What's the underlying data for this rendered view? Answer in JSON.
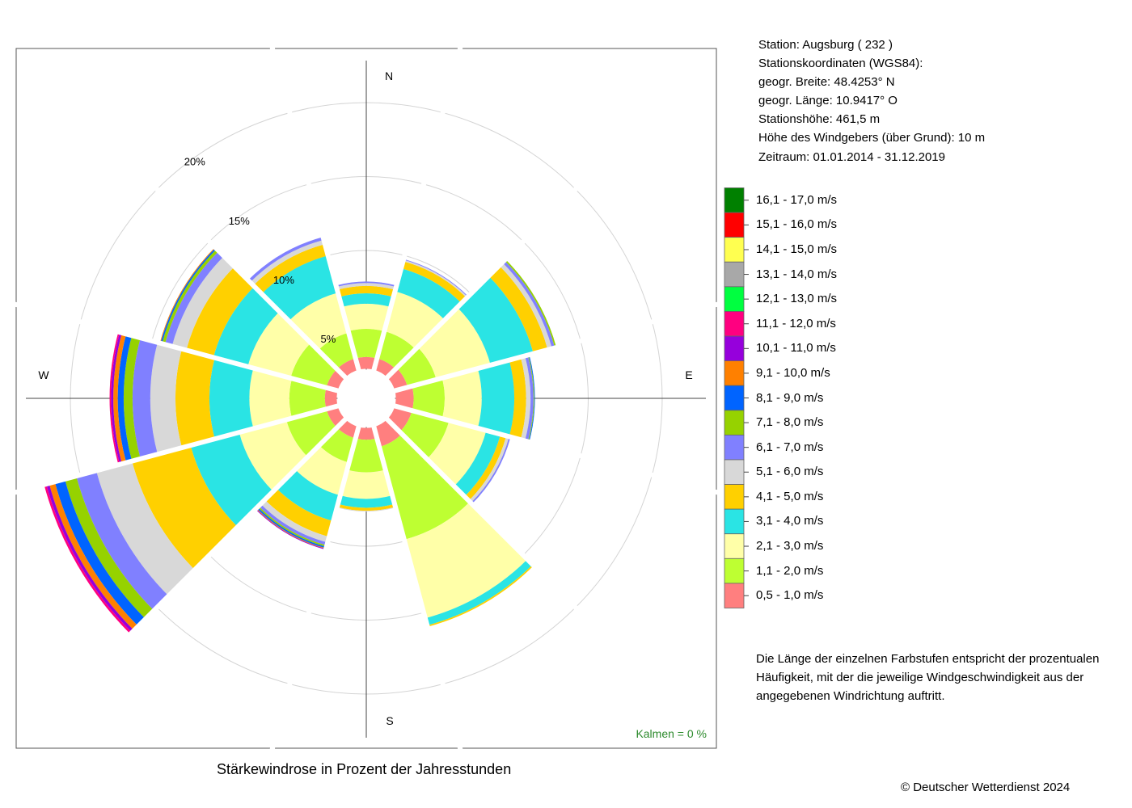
{
  "station_info": {
    "station": "Station:  Augsburg  ( 232 )",
    "coords_title": "Stationskoordinaten (WGS84):",
    "latitude": "geogr. Breite: 48.4253° N",
    "longitude": "geogr. Länge: 10.9417° O",
    "elevation": "Stationshöhe: 461,5 m",
    "sensor_height": "Höhe des Windgebers (über Grund): 10 m",
    "period": "Zeitraum: 01.01.2014 - 31.12.2019"
  },
  "note": "Die Länge der einzelnen Farbstufen entspricht der prozentualen Häufigkeit, mit der die jeweilige Windgeschwindigkeit aus der angegebenen Windrichtung auftritt.",
  "copyright": "© Deutscher Wetterdienst  2024",
  "chart_data": {
    "type": "wind-rose",
    "title": "Stärkewindrose in Prozent der Jahresstunden",
    "calm_label": "Kalmen  =  0 %",
    "direction_labels": [
      "N",
      "E",
      "S",
      "W"
    ],
    "ring_labels": [
      "5%",
      "10%",
      "15%",
      "20%"
    ],
    "ring_values": [
      5,
      10,
      15,
      20
    ],
    "max_radius": 23.5,
    "inner_radius": 2,
    "sector_width_deg": 30,
    "directions_deg": [
      0,
      30,
      60,
      90,
      120,
      150,
      180,
      210,
      240,
      270,
      300,
      330
    ],
    "speed_classes": [
      {
        "label": "0,5 - 1,0 m/s",
        "color": "#FF7F7F"
      },
      {
        "label": "1,1 - 2,0 m/s",
        "color": "#BEFF32"
      },
      {
        "label": "2,1 - 3,0 m/s",
        "color": "#FFFFA8"
      },
      {
        "label": "3,1 - 4,0 m/s",
        "color": "#2AE4E4"
      },
      {
        "label": "4,1 - 5,0 m/s",
        "color": "#FFD000"
      },
      {
        "label": "5,1 - 6,0 m/s",
        "color": "#D8D8D8"
      },
      {
        "label": "6,1 - 7,0 m/s",
        "color": "#8080FF"
      },
      {
        "label": "7,1 - 8,0 m/s",
        "color": "#96D200"
      },
      {
        "label": "8,1 - 9,0 m/s",
        "color": "#0064FF"
      },
      {
        "label": "9,1 - 10,0 m/s",
        "color": "#FF8000"
      },
      {
        "label": "10,1 - 11,0 m/s",
        "color": "#9600DC"
      },
      {
        "label": "11,1 - 12,0 m/s",
        "color": "#FF0080"
      },
      {
        "label": "12,1 - 13,0 m/s",
        "color": "#00FF40"
      },
      {
        "label": "13,1 - 14,0 m/s",
        "color": "#A8A8A8"
      },
      {
        "label": "14,1 - 15,0 m/s",
        "color": "#FFFF50"
      },
      {
        "label": "15,1 - 16,0 m/s",
        "color": "#FF0000"
      },
      {
        "label": "16,1 - 17,0 m/s",
        "color": "#008000"
      }
    ],
    "series": [
      {
        "direction": 0,
        "values": [
          0.8,
          1.9,
          1.7,
          0.7,
          0.5,
          0.2,
          0.1,
          0,
          0,
          0,
          0,
          0,
          0,
          0,
          0,
          0,
          0
        ]
      },
      {
        "direction": 30,
        "values": [
          0.8,
          1.9,
          2.8,
          1.6,
          0.5,
          0.1,
          0.05,
          0,
          0,
          0,
          0,
          0,
          0,
          0,
          0,
          0,
          0
        ]
      },
      {
        "direction": 60,
        "values": [
          0.9,
          2.0,
          3.8,
          3.0,
          1.0,
          0.3,
          0.2,
          0.1,
          0,
          0,
          0,
          0,
          0,
          0,
          0,
          0,
          0
        ]
      },
      {
        "direction": 90,
        "values": [
          1.2,
          2.1,
          2.5,
          2.2,
          0.8,
          0.3,
          0.2,
          0.05,
          0.05,
          0,
          0,
          0,
          0,
          0,
          0,
          0,
          0
        ]
      },
      {
        "direction": 120,
        "values": [
          1.2,
          2.6,
          2.6,
          1.0,
          0.4,
          0.2,
          0.1,
          0,
          0,
          0,
          0,
          0,
          0,
          0,
          0,
          0,
          0
        ]
      },
      {
        "direction": 150,
        "values": [
          1.4,
          6.5,
          5.5,
          0.5,
          0.1,
          0,
          0,
          0,
          0,
          0,
          0,
          0,
          0,
          0,
          0,
          0,
          0
        ]
      },
      {
        "direction": 180,
        "values": [
          0.8,
          2.2,
          1.8,
          0.6,
          0.2,
          0.05,
          0,
          0,
          0,
          0,
          0,
          0,
          0,
          0,
          0,
          0,
          0
        ]
      },
      {
        "direction": 210,
        "values": [
          0.8,
          1.7,
          2.3,
          1.8,
          1.1,
          0.4,
          0.2,
          0.1,
          0.1,
          0.05,
          0.05,
          0,
          0,
          0,
          0,
          0,
          0
        ]
      },
      {
        "direction": 240,
        "values": [
          0.8,
          2.8,
          3.3,
          3.4,
          4.1,
          2.5,
          1.4,
          0.8,
          0.7,
          0.4,
          0.2,
          0.15,
          0,
          0,
          0,
          0,
          0
        ]
      },
      {
        "direction": 270,
        "values": [
          0.8,
          2.4,
          2.7,
          2.7,
          2.3,
          1.7,
          1.2,
          0.6,
          0.4,
          0.3,
          0.15,
          0.1,
          0,
          0,
          0,
          0,
          0
        ]
      },
      {
        "direction": 300,
        "values": [
          0.8,
          2.5,
          3.0,
          2.4,
          1.9,
          1.0,
          0.5,
          0.2,
          0.1,
          0.05,
          0,
          0,
          0,
          0,
          0,
          0,
          0
        ]
      },
      {
        "direction": 330,
        "values": [
          0.8,
          1.8,
          2.8,
          2.6,
          0.8,
          0.3,
          0.2,
          0,
          0,
          0,
          0,
          0,
          0,
          0,
          0,
          0,
          0
        ]
      }
    ]
  }
}
